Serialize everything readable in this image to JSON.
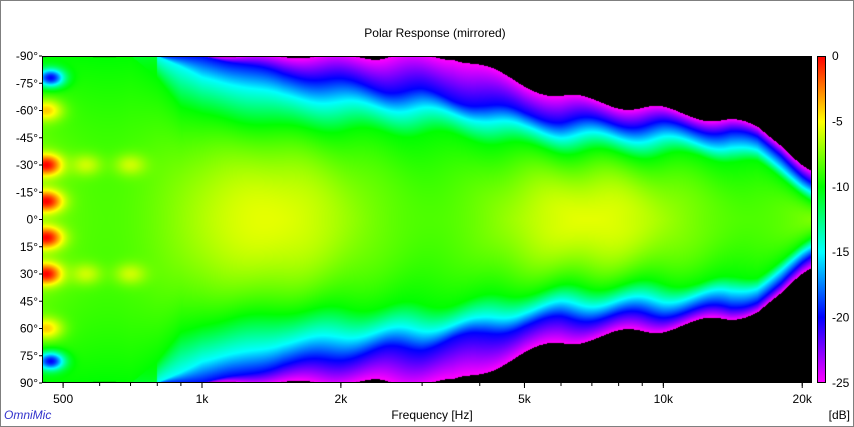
{
  "chart_data": {
    "type": "heatmap",
    "title": "Polar Response (mirrored)",
    "xlabel": "Frequency [Hz]",
    "ylabel": "",
    "x_scale": "log",
    "xlim": [
      450,
      21000
    ],
    "x_ticks": [
      {
        "value": 500,
        "label": "500"
      },
      {
        "value": 1000,
        "label": "1k"
      },
      {
        "value": 2000,
        "label": "2k"
      },
      {
        "value": 5000,
        "label": "5k"
      },
      {
        "value": 10000,
        "label": "10k"
      },
      {
        "value": 20000,
        "label": "20k"
      }
    ],
    "ylim": [
      -90,
      90
    ],
    "y_ticks": [
      {
        "value": -90,
        "label": "-90°"
      },
      {
        "value": -75,
        "label": "-75°"
      },
      {
        "value": -60,
        "label": "-60°"
      },
      {
        "value": -45,
        "label": "-45°"
      },
      {
        "value": -30,
        "label": "-30°"
      },
      {
        "value": -15,
        "label": "-15°"
      },
      {
        "value": 0,
        "label": "0°"
      },
      {
        "value": 15,
        "label": "15°"
      },
      {
        "value": 30,
        "label": "30°"
      },
      {
        "value": 45,
        "label": "45°"
      },
      {
        "value": 60,
        "label": "60°"
      },
      {
        "value": 75,
        "label": "75°"
      },
      {
        "value": 90,
        "label": "90°"
      }
    ],
    "colorbar": {
      "unit": "[dB]",
      "range": [
        -25,
        0
      ],
      "ticks": [
        {
          "value": 0,
          "label": "0"
        },
        {
          "value": -5,
          "label": "-5"
        },
        {
          "value": -10,
          "label": "-10"
        },
        {
          "value": -15,
          "label": "-15"
        },
        {
          "value": -20,
          "label": "-20"
        },
        {
          "value": -25,
          "label": "-25"
        }
      ],
      "colors": [
        "#ff0000",
        "#ffff00",
        "#00ff00",
        "#00ffff",
        "#0000ff",
        "#ff00ff"
      ]
    },
    "frequency_hz": [
      450,
      500,
      600,
      700,
      800,
      900,
      1000,
      1200,
      1500,
      2000,
      2500,
      3000,
      3500,
      4000,
      5000,
      6000,
      7000,
      8000,
      10000,
      12000,
      14000,
      16000,
      18000,
      20000,
      21000
    ],
    "half_width_-10dB_deg": [
      90,
      90,
      90,
      90,
      78,
      62,
      58,
      54,
      51,
      49,
      48,
      47,
      46,
      44,
      40,
      38,
      37,
      36,
      35,
      35,
      33,
      30,
      22,
      15,
      12
    ],
    "half_width_-15dB_deg": [
      90,
      90,
      90,
      90,
      90,
      84,
      78,
      74,
      68,
      64,
      62,
      60,
      58,
      56,
      50,
      47,
      46,
      45,
      44,
      42,
      40,
      36,
      28,
      20,
      17
    ],
    "half_width_-20dB_deg": [
      90,
      90,
      90,
      90,
      90,
      90,
      90,
      86,
      80,
      76,
      72,
      70,
      66,
      64,
      58,
      55,
      54,
      53,
      52,
      50,
      48,
      44,
      36,
      26,
      22
    ],
    "half_width_-25dB_deg": [
      90,
      90,
      90,
      90,
      90,
      90,
      90,
      90,
      90,
      90,
      90,
      90,
      90,
      84,
      74,
      68,
      65,
      63,
      60,
      57,
      54,
      50,
      42,
      32,
      28
    ],
    "hotspots": [
      {
        "freq": 460,
        "angle": -30,
        "db": 0
      },
      {
        "freq": 460,
        "angle": -10,
        "db": 0
      },
      {
        "freq": 460,
        "angle": 10,
        "db": 0
      },
      {
        "freq": 460,
        "angle": 30,
        "db": 0
      },
      {
        "freq": 460,
        "angle": -60,
        "db": -4
      },
      {
        "freq": 460,
        "angle": 60,
        "db": -4
      },
      {
        "freq": 560,
        "angle": -30,
        "db": -6
      },
      {
        "freq": 560,
        "angle": 30,
        "db": -6
      },
      {
        "freq": 700,
        "angle": -30,
        "db": -6
      },
      {
        "freq": 700,
        "angle": 30,
        "db": -6
      }
    ],
    "notches": [
      {
        "freq": 470,
        "angle": -78,
        "db": -20
      },
      {
        "freq": 470,
        "angle": 78,
        "db": -20
      }
    ]
  },
  "branding": {
    "text": "OmniMic"
  }
}
